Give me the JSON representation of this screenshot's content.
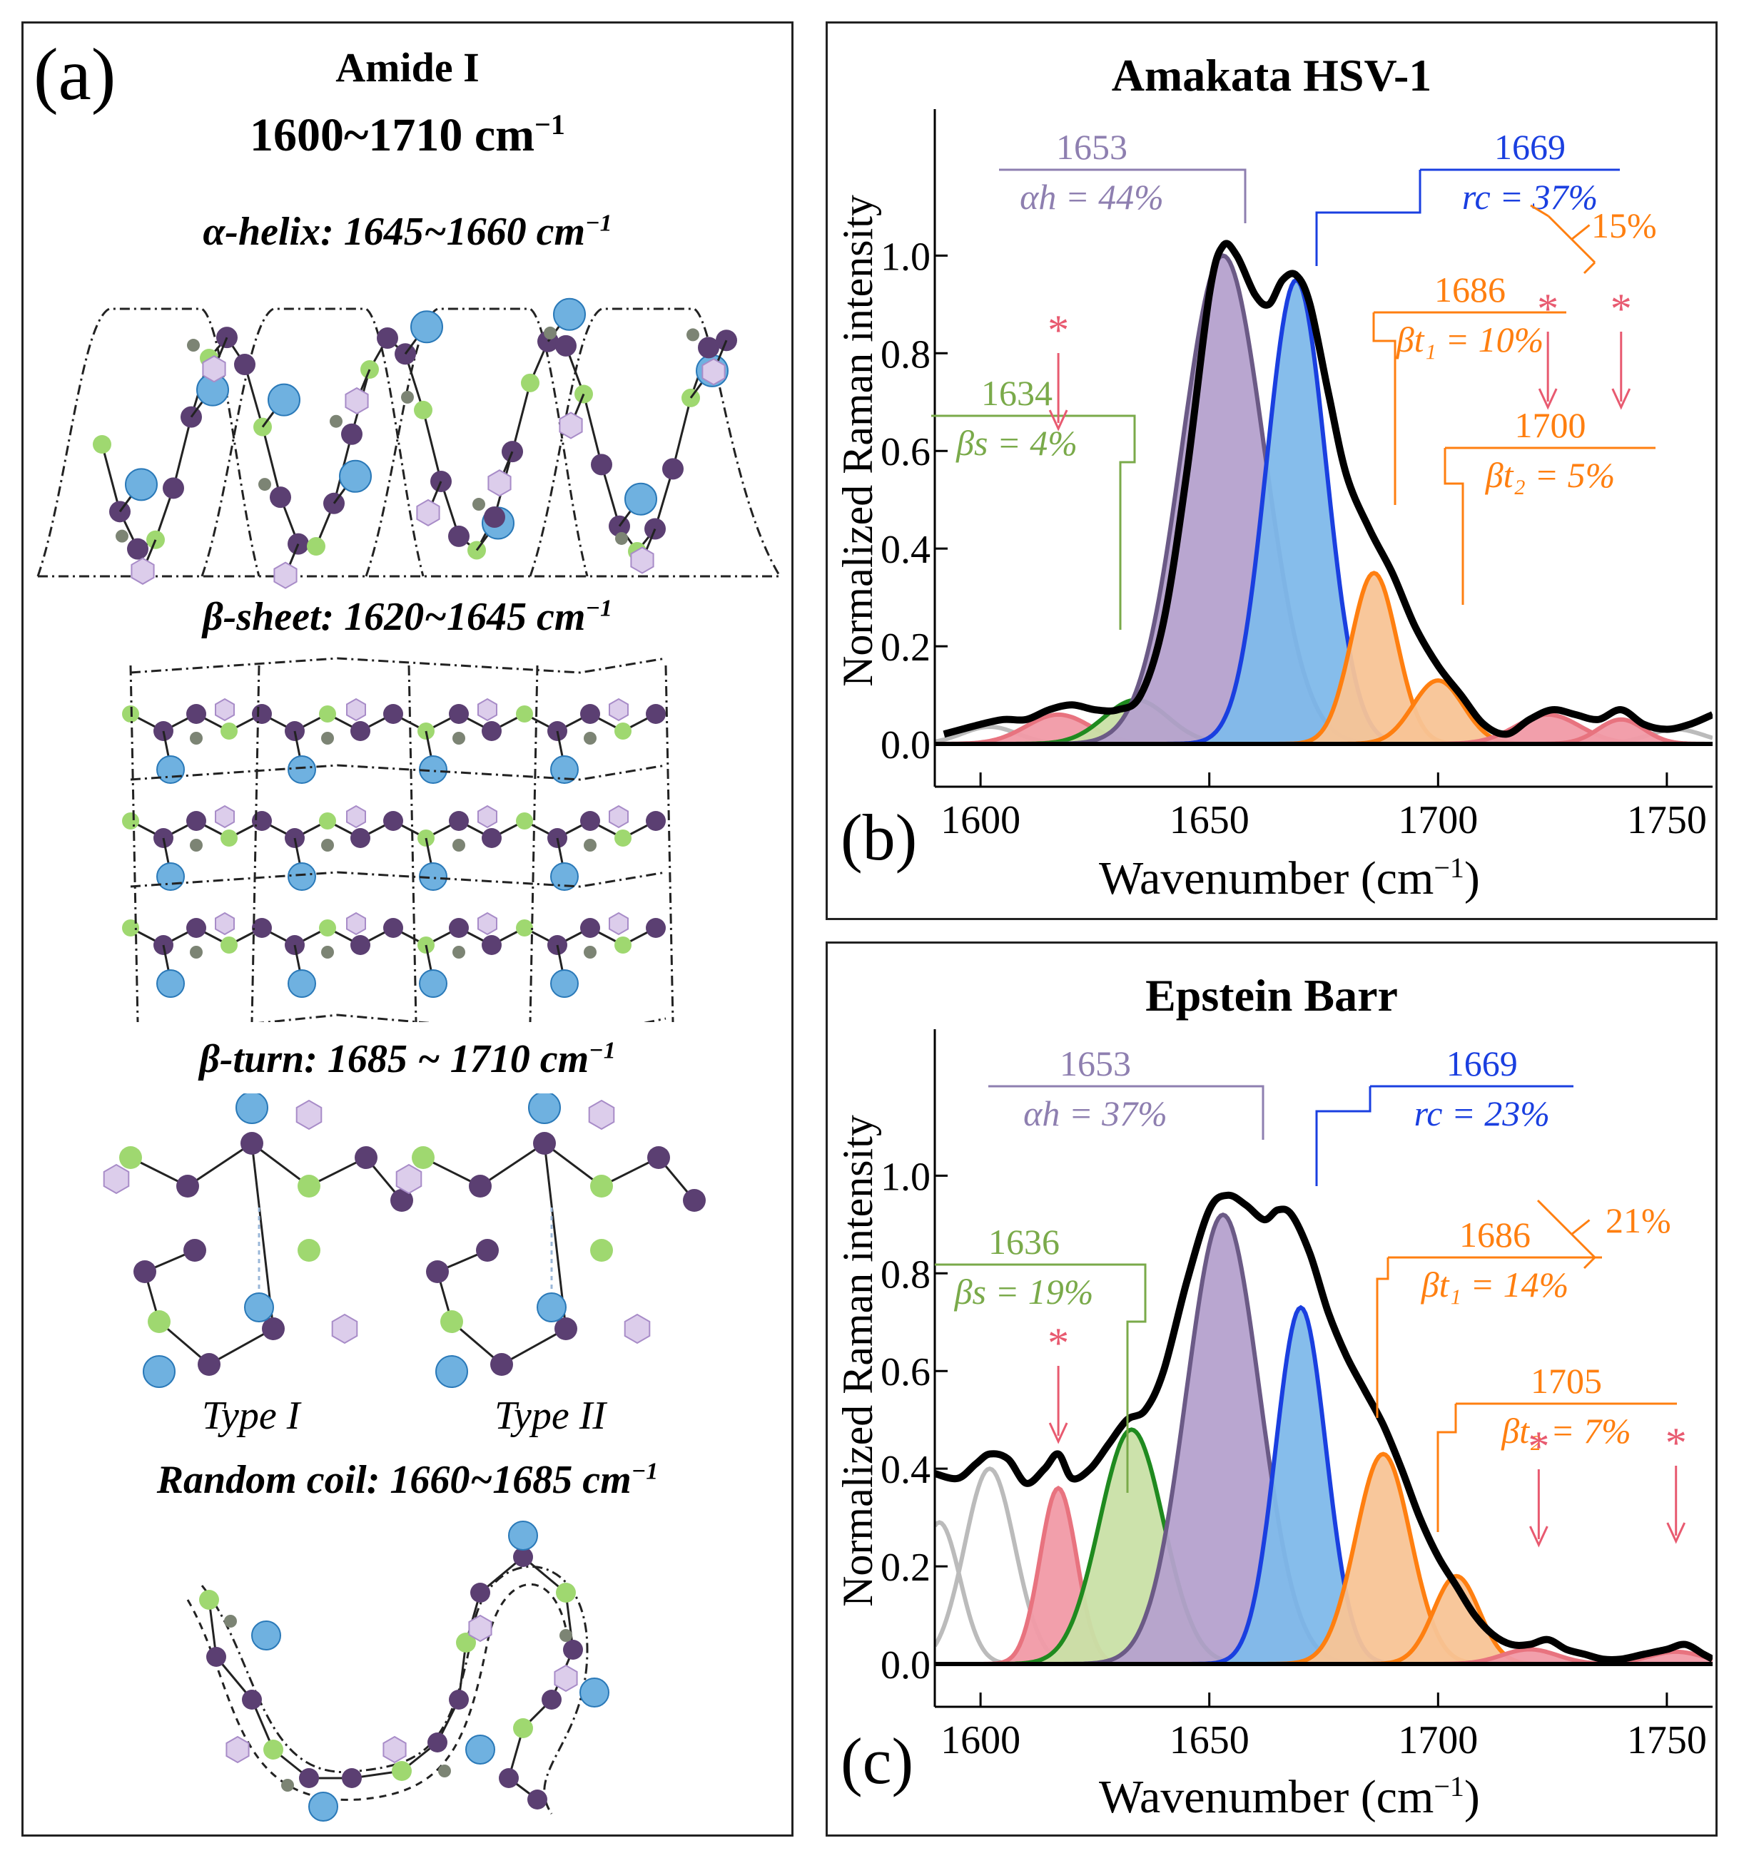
{
  "panel_a": {
    "label": "(a)",
    "title": "Amide I",
    "range_value": "1600~1710 cm",
    "range_sup": "−1",
    "sections": {
      "alpha": {
        "name": "α-helix:",
        "range": "1645~1660 cm",
        "sup": "−1"
      },
      "beta_sheet": {
        "name": "β-sheet:",
        "range": "1620~1645 cm",
        "sup": "−1"
      },
      "beta_turn": {
        "name": "β-turn:",
        "range": " 1685 ~ 1710 cm",
        "sup": "−1"
      },
      "random_coil": {
        "name": "Random coil:",
        "range": "1660~1685 cm",
        "sup": "−1"
      }
    },
    "turn_types": [
      "Type I",
      "Type II"
    ],
    "atom_colors": {
      "backbone": "#5b3f72",
      "green": "#9fd870",
      "blue": "#6fb1e0",
      "lilac": "#dccdeb",
      "grey": "#7c8474"
    }
  },
  "chart_data": [
    {
      "type": "area",
      "panel": "(b)",
      "title": "Amakata HSV-1",
      "xlabel": "Wavenumber (cm",
      "xlabel_sup": "−1",
      "ylabel": "Normalized Raman intensity",
      "xlim": [
        1590,
        1760
      ],
      "ylim": [
        0,
        1.3
      ],
      "xticks": [
        1600,
        1650,
        1700,
        1750
      ],
      "yticks": [
        0.0,
        0.2,
        0.4,
        0.6,
        0.8,
        1.0
      ],
      "ytick_labels": [
        "0.0",
        "0.2",
        "0.4",
        "0.6",
        "0.8",
        "1.0"
      ],
      "components": [
        {
          "name": "band-grey-1",
          "center": 1602,
          "amp": 0.035,
          "width": 6,
          "color": "#bbbbbb",
          "fill": "none"
        },
        {
          "name": "band-grey-2",
          "center": 1752,
          "amp": 0.03,
          "width": 6,
          "color": "#bbbbbb",
          "fill": "none"
        },
        {
          "name": "band-red-1",
          "center": 1617,
          "amp": 0.06,
          "width": 7,
          "color": "#e8737f",
          "fill": "#f19aa6"
        },
        {
          "name": "band-green",
          "center": 1634,
          "amp": 0.09,
          "width": 7,
          "color": "#1f8a1f",
          "fill": "#c9e0a7"
        },
        {
          "name": "band-purple",
          "center": 1653,
          "amp": 1.0,
          "width": 9,
          "color": "#6b5a86",
          "fill": "#b5a1cd"
        },
        {
          "name": "band-blue",
          "center": 1669,
          "amp": 0.95,
          "width": 6.5,
          "color": "#1a3fe0",
          "fill": "#7fb9ea"
        },
        {
          "name": "band-orange-1",
          "center": 1686,
          "amp": 0.35,
          "width": 5,
          "color": "#ff7f10",
          "fill": "#f8c496"
        },
        {
          "name": "band-orange-2",
          "center": 1700,
          "amp": 0.13,
          "width": 5.5,
          "color": "#ff7f10",
          "fill": "#f8c496"
        },
        {
          "name": "band-red-2",
          "center": 1724,
          "amp": 0.06,
          "width": 7,
          "color": "#e8737f",
          "fill": "#f19aa6"
        },
        {
          "name": "band-red-3",
          "center": 1740,
          "amp": 0.05,
          "width": 5,
          "color": "#e8737f",
          "fill": "#f19aa6"
        }
      ],
      "envelope": {
        "x": [
          1592,
          1600,
          1605,
          1610,
          1615,
          1620,
          1625,
          1630,
          1635,
          1640,
          1645,
          1650,
          1653,
          1656,
          1660,
          1663,
          1666,
          1669,
          1672,
          1676,
          1680,
          1685,
          1690,
          1695,
          1700,
          1705,
          1710,
          1715,
          1720,
          1725,
          1730,
          1735,
          1740,
          1745,
          1750,
          1755,
          1760
        ],
        "y": [
          0.02,
          0.04,
          0.05,
          0.05,
          0.07,
          0.08,
          0.07,
          0.07,
          0.1,
          0.25,
          0.55,
          0.92,
          1.02,
          1.0,
          0.92,
          0.9,
          0.95,
          0.96,
          0.9,
          0.72,
          0.55,
          0.44,
          0.35,
          0.24,
          0.16,
          0.1,
          0.04,
          0.02,
          0.05,
          0.07,
          0.06,
          0.05,
          0.07,
          0.04,
          0.03,
          0.04,
          0.06
        ],
        "color": "#000000"
      },
      "annotations": [
        {
          "wavenumber": "1653",
          "label": "αh = 44%",
          "color": "#8e7fb0"
        },
        {
          "wavenumber": "1669",
          "label": "rc = 37%",
          "color": "#1a3fe0"
        },
        {
          "wavenumber": "1686",
          "label": "βt₁ = 10%",
          "color": "#ff7f10"
        },
        {
          "wavenumber": "1700",
          "label": "βt₂ = 5%",
          "color": "#ff7f10"
        },
        {
          "wavenumber": "1634",
          "label": "βs = 4%",
          "color": "#7aaa4a"
        },
        {
          "total": "15%",
          "color": "#ff7f10"
        }
      ],
      "peak_markers": {
        "symbol": "*",
        "positions": [
          1617,
          1724,
          1740
        ],
        "color": "#e85a70"
      }
    },
    {
      "type": "area",
      "panel": "(c)",
      "title": "Epstein Barr",
      "xlabel": "Wavenumber (cm",
      "xlabel_sup": "−1",
      "ylabel": "Normalized Raman intensity",
      "xlim": [
        1590,
        1760
      ],
      "ylim": [
        0,
        1.3
      ],
      "xticks": [
        1600,
        1650,
        1700,
        1750
      ],
      "yticks": [
        0.0,
        0.2,
        0.4,
        0.6,
        0.8,
        1.0
      ],
      "ytick_labels": [
        "0.0",
        "0.2",
        "0.4",
        "0.6",
        "0.8",
        "1.0"
      ],
      "components": [
        {
          "name": "band-grey-1",
          "center": 1591,
          "amp": 0.29,
          "width": 4.5,
          "color": "#bbbbbb",
          "fill": "none"
        },
        {
          "name": "band-grey-2",
          "center": 1602,
          "amp": 0.4,
          "width": 5.5,
          "color": "#bbbbbb",
          "fill": "none"
        },
        {
          "name": "band-red-1",
          "center": 1617,
          "amp": 0.36,
          "width": 4,
          "color": "#e8737f",
          "fill": "#f19aa6"
        },
        {
          "name": "band-green",
          "center": 1633,
          "amp": 0.48,
          "width": 7,
          "color": "#1f8a1f",
          "fill": "#c9e0a7"
        },
        {
          "name": "band-purple",
          "center": 1653,
          "amp": 0.92,
          "width": 8,
          "color": "#6b5a86",
          "fill": "#b5a1cd"
        },
        {
          "name": "band-blue",
          "center": 1670,
          "amp": 0.73,
          "width": 5.5,
          "color": "#1a3fe0",
          "fill": "#7fb9ea"
        },
        {
          "name": "band-orange-1",
          "center": 1688,
          "amp": 0.43,
          "width": 6,
          "color": "#ff7f10",
          "fill": "#f8c496"
        },
        {
          "name": "band-orange-2",
          "center": 1704,
          "amp": 0.18,
          "width": 5,
          "color": "#ff7f10",
          "fill": "#f8c496"
        },
        {
          "name": "band-red-2",
          "center": 1720,
          "amp": 0.03,
          "width": 6,
          "color": "#e8737f",
          "fill": "#f19aa6"
        },
        {
          "name": "band-red-3",
          "center": 1752,
          "amp": 0.025,
          "width": 6,
          "color": "#e8737f",
          "fill": "#f19aa6"
        }
      ],
      "envelope": {
        "x": [
          1590,
          1595,
          1599,
          1602,
          1606,
          1610,
          1614,
          1617,
          1620,
          1624,
          1628,
          1632,
          1636,
          1640,
          1645,
          1650,
          1654,
          1658,
          1662,
          1665,
          1668,
          1672,
          1676,
          1680,
          1684,
          1688,
          1692,
          1696,
          1700,
          1704,
          1708,
          1712,
          1716,
          1720,
          1724,
          1728,
          1732,
          1736,
          1740,
          1745,
          1750,
          1754,
          1758,
          1760
        ],
        "y": [
          0.39,
          0.38,
          0.41,
          0.43,
          0.42,
          0.37,
          0.4,
          0.43,
          0.38,
          0.4,
          0.45,
          0.5,
          0.52,
          0.6,
          0.78,
          0.93,
          0.96,
          0.94,
          0.91,
          0.93,
          0.92,
          0.84,
          0.72,
          0.63,
          0.56,
          0.49,
          0.4,
          0.3,
          0.22,
          0.16,
          0.1,
          0.06,
          0.04,
          0.04,
          0.05,
          0.03,
          0.02,
          0.01,
          0.01,
          0.02,
          0.03,
          0.04,
          0.02,
          0.01
        ],
        "color": "#000000"
      },
      "annotations": [
        {
          "wavenumber": "1653",
          "label": "αh = 37%",
          "color": "#8e7fb0"
        },
        {
          "wavenumber": "1669",
          "label": "rc = 23%",
          "color": "#1a3fe0"
        },
        {
          "wavenumber": "1686",
          "label": "βt₁ = 14%",
          "color": "#ff7f10"
        },
        {
          "wavenumber": "1705",
          "label": "βt₂ = 7%",
          "color": "#ff7f10"
        },
        {
          "wavenumber": "1636",
          "label": "βs = 19%",
          "color": "#7aaa4a"
        },
        {
          "total": "21%",
          "color": "#ff7f10"
        }
      ],
      "peak_markers": {
        "symbol": "*",
        "positions": [
          1617,
          1722,
          1752
        ],
        "color": "#e85a70"
      }
    }
  ]
}
